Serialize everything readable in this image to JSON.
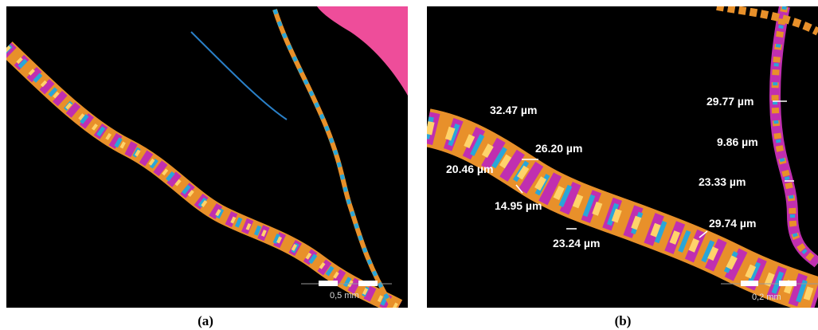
{
  "panels": [
    {
      "label": "(a)",
      "scale_bar": "0,5 mm"
    },
    {
      "label": "(b)",
      "scale_bar": "0,2 mm",
      "measurements": [
        "32.47 µm",
        "26.20 µm",
        "20.46 µm",
        "14.95 µm",
        "23.24 µm",
        "29.74 µm",
        "29.77 µm",
        "9.86 µm",
        "23.33 µm"
      ]
    }
  ]
}
